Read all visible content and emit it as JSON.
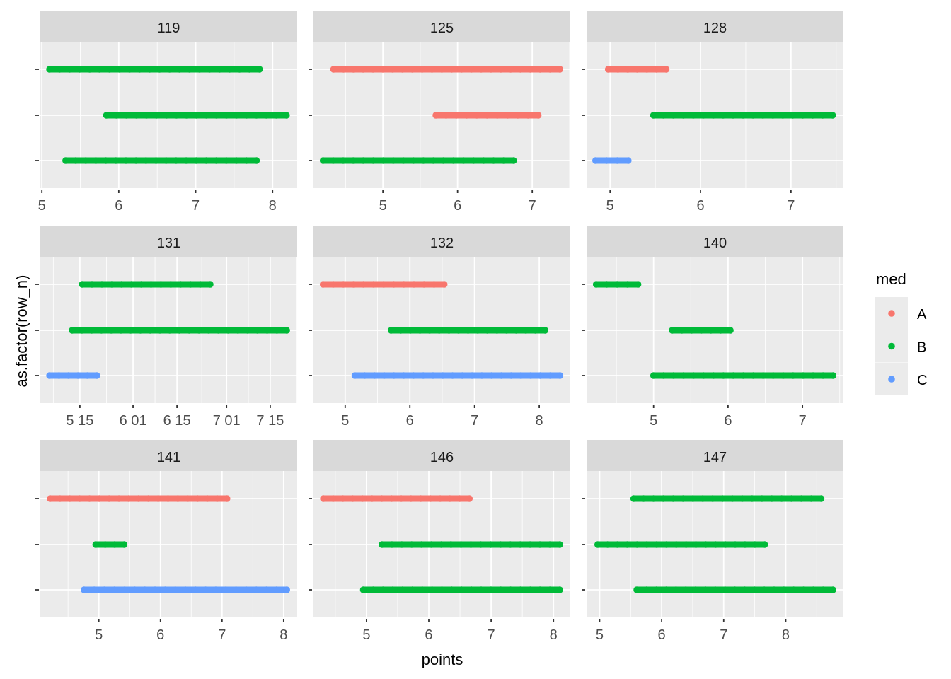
{
  "chart_data": {
    "type": "scatter",
    "xlabel": "points",
    "ylabel": "as.factor(row_n)",
    "legend": {
      "title": "med",
      "position": "right",
      "entries": [
        {
          "label": "A",
          "color": "#F8766D"
        },
        {
          "label": "B",
          "color": "#00BA38"
        },
        {
          "label": "C",
          "color": "#619CFF"
        }
      ]
    },
    "panels": [
      {
        "title": "119",
        "xlim": [
          4.98,
          8.32
        ],
        "ticks": [
          {
            "v": 5,
            "label": "5"
          },
          {
            "v": 6,
            "label": "6"
          },
          {
            "v": 7,
            "label": "7"
          },
          {
            "v": 8,
            "label": "8"
          }
        ],
        "segments": [
          {
            "row": 1,
            "med": "B",
            "from": 5.1,
            "to": 7.83
          },
          {
            "row": 2,
            "med": "B",
            "from": 5.84,
            "to": 8.18
          },
          {
            "row": 3,
            "med": "B",
            "from": 5.31,
            "to": 7.79
          }
        ]
      },
      {
        "title": "125",
        "xlim": [
          4.07,
          7.51
        ],
        "ticks": [
          {
            "v": 5,
            "label": "5"
          },
          {
            "v": 6,
            "label": "6"
          },
          {
            "v": 7,
            "label": "7"
          }
        ],
        "segments": [
          {
            "row": 1,
            "med": "A",
            "from": 4.34,
            "to": 7.37
          },
          {
            "row": 2,
            "med": "A",
            "from": 5.71,
            "to": 7.08
          },
          {
            "row": 3,
            "med": "B",
            "from": 4.2,
            "to": 6.75
          }
        ]
      },
      {
        "title": "128",
        "xlim": [
          4.74,
          7.58
        ],
        "ticks": [
          {
            "v": 5,
            "label": "5"
          },
          {
            "v": 6,
            "label": "6"
          },
          {
            "v": 7,
            "label": "7"
          }
        ],
        "segments": [
          {
            "row": 1,
            "med": "A",
            "from": 4.98,
            "to": 5.62
          },
          {
            "row": 2,
            "med": "B",
            "from": 5.48,
            "to": 7.46
          },
          {
            "row": 3,
            "med": "C",
            "from": 4.84,
            "to": 5.2
          }
        ]
      },
      {
        "title": "131",
        "xlim": [
          0,
          100
        ],
        "ticks": [
          {
            "v": 15.4,
            "label": "5 15"
          },
          {
            "v": 36.1,
            "label": "6 01"
          },
          {
            "v": 53.2,
            "label": "6 15"
          },
          {
            "v": 72.5,
            "label": "7 01"
          },
          {
            "v": 89.5,
            "label": "7 15"
          }
        ],
        "segments": [
          {
            "row": 1,
            "med": "B",
            "from": 16.3,
            "to": 66.1
          },
          {
            "row": 2,
            "med": "B",
            "from": 12.4,
            "to": 95.9
          },
          {
            "row": 3,
            "med": "C",
            "from": 3.6,
            "to": 22.0
          }
        ]
      },
      {
        "title": "132",
        "xlim": [
          4.51,
          8.48
        ],
        "ticks": [
          {
            "v": 5,
            "label": "5"
          },
          {
            "v": 6,
            "label": "6"
          },
          {
            "v": 7,
            "label": "7"
          },
          {
            "v": 8,
            "label": "8"
          }
        ],
        "segments": [
          {
            "row": 1,
            "med": "A",
            "from": 4.66,
            "to": 6.53
          },
          {
            "row": 2,
            "med": "B",
            "from": 5.71,
            "to": 8.09
          },
          {
            "row": 3,
            "med": "C",
            "from": 5.15,
            "to": 8.32
          }
        ]
      },
      {
        "title": "140",
        "xlim": [
          4.1,
          7.55
        ],
        "ticks": [
          {
            "v": 5,
            "label": "5"
          },
          {
            "v": 6,
            "label": "6"
          },
          {
            "v": 7,
            "label": "7"
          }
        ],
        "segments": [
          {
            "row": 1,
            "med": "B",
            "from": 4.23,
            "to": 4.79
          },
          {
            "row": 2,
            "med": "B",
            "from": 5.25,
            "to": 6.03
          },
          {
            "row": 3,
            "med": "B",
            "from": 5.0,
            "to": 7.41
          }
        ]
      },
      {
        "title": "141",
        "xlim": [
          4.05,
          8.22
        ],
        "ticks": [
          {
            "v": 5,
            "label": "5"
          },
          {
            "v": 6,
            "label": "6"
          },
          {
            "v": 7,
            "label": "7"
          },
          {
            "v": 8,
            "label": "8"
          }
        ],
        "segments": [
          {
            "row": 1,
            "med": "A",
            "from": 4.21,
            "to": 7.08
          },
          {
            "row": 2,
            "med": "B",
            "from": 4.95,
            "to": 5.41
          },
          {
            "row": 3,
            "med": "C",
            "from": 4.76,
            "to": 8.05
          }
        ]
      },
      {
        "title": "146",
        "xlim": [
          4.15,
          8.27
        ],
        "ticks": [
          {
            "v": 5,
            "label": "5"
          },
          {
            "v": 6,
            "label": "6"
          },
          {
            "v": 7,
            "label": "7"
          },
          {
            "v": 8,
            "label": "8"
          }
        ],
        "segments": [
          {
            "row": 1,
            "med": "A",
            "from": 4.31,
            "to": 6.65
          },
          {
            "row": 2,
            "med": "B",
            "from": 5.25,
            "to": 8.1
          },
          {
            "row": 3,
            "med": "B",
            "from": 4.95,
            "to": 8.1
          }
        ]
      },
      {
        "title": "147",
        "xlim": [
          4.79,
          8.93
        ],
        "ticks": [
          {
            "v": 5,
            "label": "5"
          },
          {
            "v": 6,
            "label": "6"
          },
          {
            "v": 7,
            "label": "7"
          },
          {
            "v": 8,
            "label": "8"
          }
        ],
        "segments": [
          {
            "row": 1,
            "med": "B",
            "from": 5.55,
            "to": 8.57
          },
          {
            "row": 2,
            "med": "B",
            "from": 4.97,
            "to": 7.66
          },
          {
            "row": 3,
            "med": "B",
            "from": 5.6,
            "to": 8.76
          }
        ]
      }
    ]
  }
}
